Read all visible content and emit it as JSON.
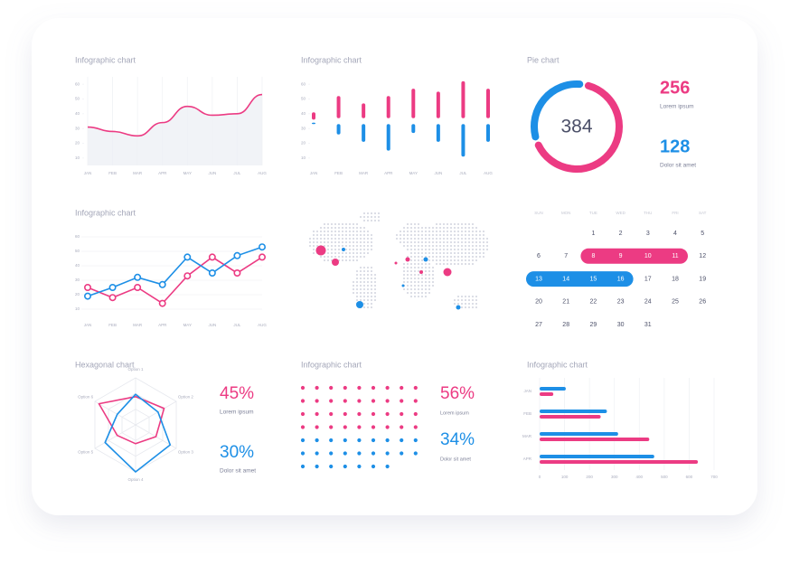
{
  "chart_data": [
    {
      "type": "area",
      "title": "Infographic chart",
      "categories": [
        "JAN",
        "FEB",
        "MAR",
        "APR",
        "MAY",
        "JUN",
        "JUL",
        "AUG"
      ],
      "values": [
        31,
        28,
        25,
        34,
        45,
        39,
        40,
        53
      ],
      "color": "#ec3b83",
      "ylim": [
        5,
        65
      ],
      "yticks": [
        10,
        20,
        30,
        40,
        50,
        60
      ]
    },
    {
      "type": "range-bar",
      "title": "Infographic chart",
      "categories": [
        "JAN",
        "FEB",
        "MAR",
        "APR",
        "MAY",
        "JUN",
        "JUL",
        "AUG"
      ],
      "series": [
        {
          "color": "#ec3b83",
          "values": [
            [
              36,
              41
            ],
            [
              37,
              52
            ],
            [
              37,
              47
            ],
            [
              37,
              52
            ],
            [
              37,
              57
            ],
            [
              37,
              55
            ],
            [
              37,
              62
            ],
            [
              37,
              57
            ]
          ]
        },
        {
          "color": "#1d8fe6",
          "values": [
            [
              33,
              34
            ],
            [
              26,
              33
            ],
            [
              21,
              33
            ],
            [
              15,
              33
            ],
            [
              27,
              33
            ],
            [
              21,
              33
            ],
            [
              11,
              33
            ],
            [
              21,
              33
            ]
          ]
        }
      ],
      "ylim": [
        5,
        65
      ],
      "yticks": [
        10,
        20,
        30,
        40,
        50,
        60
      ]
    },
    {
      "type": "donut",
      "title": "Pie chart",
      "total": 384,
      "values": [
        256,
        128
      ],
      "labels": [
        "Lorem ipsum",
        "Dolor sit amet"
      ],
      "colors": [
        "#ec3b83",
        "#1d8fe6"
      ]
    },
    {
      "type": "line",
      "title": "Infographic chart",
      "categories": [
        "JAN",
        "FEB",
        "MAR",
        "APR",
        "MAY",
        "JUN",
        "JUL",
        "AUG"
      ],
      "series": [
        {
          "color": "#ec3b83",
          "values": [
            25,
            18,
            25,
            14,
            33,
            46,
            35,
            46
          ]
        },
        {
          "color": "#1d8fe6",
          "values": [
            19,
            25,
            32,
            27,
            46,
            35,
            47,
            53
          ]
        }
      ],
      "ylim": [
        5,
        65
      ],
      "yticks": [
        10,
        20,
        30,
        40,
        50,
        60
      ],
      "grid": true
    },
    {
      "type": "radar",
      "title": "Hexagonal chart",
      "categories": [
        "Option 1",
        "Option 2",
        "Option 3",
        "Option 4",
        "Option 5",
        "Option 6"
      ],
      "series": [
        {
          "color": "#ec3b83",
          "values": [
            60,
            70,
            50,
            40,
            45,
            90
          ]
        },
        {
          "color": "#1d8fe6",
          "values": [
            65,
            55,
            85,
            100,
            75,
            45
          ]
        }
      ],
      "rlim": [
        0,
        100
      ],
      "stats": {
        "values": [
          45,
          30
        ],
        "value_labels": [
          "45%",
          "30%"
        ],
        "labels": [
          "Lorem ipsum",
          "Dolor sit amet"
        ],
        "colors": [
          "#ec3b83",
          "#1d8fe6"
        ]
      }
    },
    {
      "type": "dot-stats",
      "title": "Infographic chart",
      "values": [
        56,
        34
      ],
      "value_labels": [
        "56%",
        "34%"
      ],
      "labels": [
        "Lorem ipsum",
        "Dolor sit amet"
      ],
      "colors": [
        "#ec3b83",
        "#1d8fe6"
      ]
    },
    {
      "type": "hbar",
      "title": "Infographic chart",
      "categories": [
        "JAN",
        "FEB",
        "MAR",
        "APR"
      ],
      "series": [
        {
          "color": "#1d8fe6",
          "values": [
            105,
            270,
            315,
            460
          ]
        },
        {
          "color": "#ec3b83",
          "values": [
            55,
            245,
            440,
            635
          ]
        }
      ],
      "xlim": [
        0,
        700
      ],
      "xticks": [
        0,
        100,
        200,
        300,
        400,
        500,
        600,
        700
      ]
    }
  ],
  "calendar": {
    "weekdays": [
      "SUN",
      "MON",
      "TUE",
      "WED",
      "THU",
      "FRI",
      "SAT"
    ],
    "weeks": [
      [
        null,
        null,
        1,
        2,
        3,
        4,
        5
      ],
      [
        6,
        7,
        8,
        9,
        10,
        11,
        12
      ],
      [
        13,
        14,
        15,
        16,
        17,
        18,
        19
      ],
      [
        20,
        21,
        22,
        23,
        24,
        25,
        26
      ],
      [
        27,
        28,
        29,
        30,
        31,
        null,
        null
      ]
    ],
    "highlights": [
      {
        "start": 8,
        "end": 11,
        "color": "#ec3b83"
      },
      {
        "start": 13,
        "end": 16,
        "color": "#1d8fe6"
      }
    ]
  }
}
